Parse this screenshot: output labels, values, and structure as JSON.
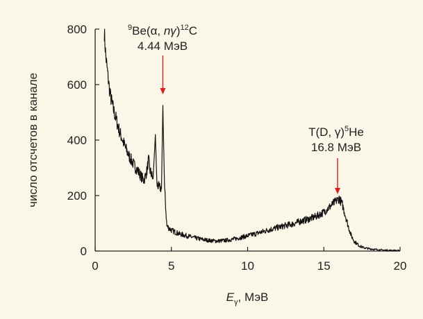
{
  "chart_data": {
    "type": "line",
    "xlabel_main": "E",
    "xlabel_sub": "γ",
    "xlabel_unit": ", МэВ",
    "ylabel": "число отсчетов в канале",
    "xlim": [
      0,
      20
    ],
    "ylim": [
      0,
      800
    ],
    "xticks": [
      0,
      5,
      10,
      15,
      20
    ],
    "yticks": [
      0,
      200,
      400,
      600,
      800
    ],
    "line_color": "#111111",
    "arrow_color": "#d62020",
    "series": [
      {
        "x": [
          0.6,
          0.7,
          0.8,
          0.9,
          1.0,
          1.2,
          1.4,
          1.6,
          1.8,
          2.0,
          2.2,
          2.4,
          2.6,
          2.8,
          3.0,
          3.2,
          3.4,
          3.5,
          3.6,
          3.8,
          3.95,
          4.05,
          4.2,
          4.35,
          4.44,
          4.55,
          4.7,
          5.0,
          5.5,
          6.0,
          6.5,
          7.0,
          7.5,
          8.0,
          8.5,
          9.0,
          9.5,
          10.0,
          10.5,
          11.0,
          11.5,
          12.0,
          12.5,
          13.0,
          13.5,
          14.0,
          14.5,
          15.0,
          15.5,
          15.8,
          16.0,
          16.2,
          16.4,
          16.6,
          16.8,
          17.0,
          17.3,
          17.6,
          18.0,
          18.5,
          19.0,
          19.5,
          20.0
        ],
        "y": [
          790,
          700,
          650,
          600,
          560,
          510,
          470,
          430,
          400,
          370,
          345,
          325,
          305,
          290,
          270,
          255,
          290,
          330,
          290,
          260,
          420,
          240,
          230,
          225,
          525,
          230,
          90,
          75,
          62,
          55,
          48,
          42,
          38,
          36,
          38,
          42,
          48,
          55,
          62,
          70,
          78,
          85,
          92,
          98,
          108,
          115,
          125,
          140,
          165,
          180,
          190,
          170,
          130,
          90,
          55,
          35,
          20,
          12,
          8,
          5,
          3,
          2,
          1
        ]
      }
    ],
    "annotations": [
      {
        "x": 4.44,
        "y_text": 800,
        "y_arrow_end": 565,
        "line1_sup": "9",
        "line1_a": "Be(α, ",
        "line1_italic": "nγ",
        "line1_b": ")",
        "line1_sup2": "12",
        "line1_c": "C",
        "line2": "4.44 МэВ"
      },
      {
        "x": 15.9,
        "y_text": 390,
        "y_arrow_end": 205,
        "line1_a": "T(D, γ)",
        "line1_sup": "5",
        "line1_b": "He",
        "line2": "16.8 МэВ"
      }
    ]
  }
}
